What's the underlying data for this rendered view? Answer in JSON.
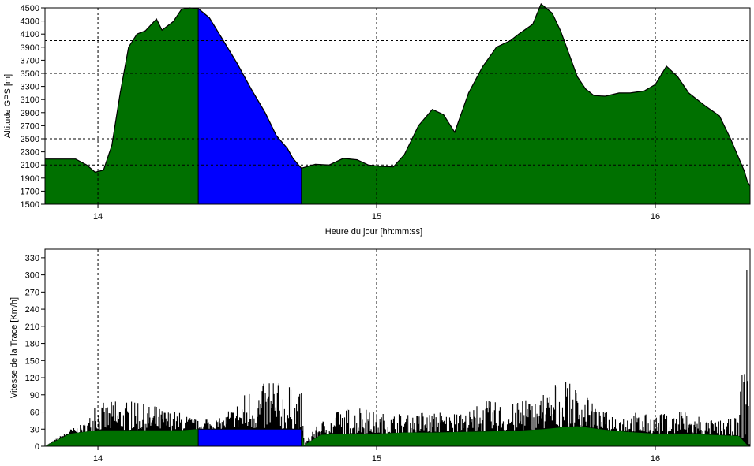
{
  "chart_data": [
    {
      "type": "area",
      "xlabel": "Heure du jour [hh:mm:ss]",
      "ylabel": "Altitude GPS [m]",
      "xlim": [
        13.81,
        16.34
      ],
      "ylim": [
        1500,
        4500
      ],
      "yticks": [
        1500,
        1700,
        1900,
        2100,
        2300,
        2500,
        2700,
        2900,
        3100,
        3300,
        3500,
        3700,
        3900,
        4100,
        4300,
        4500
      ],
      "xticks": [
        14,
        15,
        16
      ],
      "hgrid": [
        2100,
        2500,
        3000,
        3500,
        4000,
        4500
      ],
      "grid": true,
      "selection": [
        14.36,
        14.73
      ],
      "colors": {
        "fill": "#007000",
        "selection": "#0000ff",
        "line": "#000000"
      },
      "x": [
        13.81,
        13.92,
        13.96,
        13.99,
        14.02,
        14.05,
        14.08,
        14.11,
        14.14,
        14.17,
        14.21,
        14.23,
        14.27,
        14.3,
        14.33,
        14.36,
        14.4,
        14.45,
        14.5,
        14.55,
        14.6,
        14.64,
        14.68,
        14.7,
        14.73,
        14.78,
        14.83,
        14.88,
        14.93,
        14.97,
        15.01,
        15.06,
        15.1,
        15.15,
        15.2,
        15.24,
        15.28,
        15.33,
        15.38,
        15.43,
        15.48,
        15.51,
        15.56,
        15.59,
        15.63,
        15.66,
        15.69,
        15.72,
        15.75,
        15.78,
        15.82,
        15.87,
        15.91,
        15.96,
        16.0,
        16.04,
        16.08,
        16.12,
        16.18,
        16.23,
        16.27,
        16.3,
        16.32,
        16.33,
        16.34
      ],
      "values": [
        2190,
        2190,
        2100,
        1990,
        2020,
        2400,
        3200,
        3900,
        4100,
        4150,
        4330,
        4160,
        4290,
        4480,
        4500,
        4490,
        4350,
        4000,
        3650,
        3260,
        2900,
        2550,
        2350,
        2200,
        2050,
        2110,
        2100,
        2200,
        2180,
        2100,
        2080,
        2070,
        2260,
        2700,
        2950,
        2870,
        2600,
        3200,
        3600,
        3900,
        4000,
        4100,
        4250,
        4560,
        4420,
        4150,
        3800,
        3450,
        3260,
        3160,
        3150,
        3200,
        3200,
        3230,
        3330,
        3610,
        3450,
        3200,
        3000,
        2850,
        2500,
        2200,
        2000,
        1850,
        1780
      ]
    },
    {
      "type": "area",
      "ylabel": "Vitesse de la Trace [Km/h]",
      "xlim": [
        13.81,
        16.34
      ],
      "ylim": [
        0,
        345
      ],
      "yticks": [
        0,
        30,
        60,
        90,
        120,
        150,
        180,
        210,
        240,
        270,
        300,
        330
      ],
      "xticks": [
        14,
        15,
        16
      ],
      "grid": true,
      "selection": [
        14.36,
        14.73
      ],
      "colors": {
        "fill": "#007000",
        "selection": "#0000ff",
        "peaks": "#000000"
      },
      "x": [
        13.81,
        13.9,
        13.95,
        14.0,
        14.1,
        14.2,
        14.3,
        14.36,
        14.45,
        14.55,
        14.65,
        14.73,
        14.74,
        14.8,
        14.9,
        15.0,
        15.1,
        15.2,
        15.3,
        15.4,
        15.5,
        15.6,
        15.66,
        15.72,
        15.8,
        15.9,
        16.0,
        16.1,
        16.2,
        16.3,
        16.33,
        16.34
      ],
      "base": [
        0,
        22,
        25,
        28,
        28,
        28,
        28,
        30,
        30,
        30,
        30,
        30,
        2,
        20,
        22,
        22,
        24,
        24,
        25,
        26,
        27,
        30,
        33,
        35,
        30,
        25,
        22,
        22,
        20,
        18,
        2,
        0
      ],
      "envelope": [
        0,
        30,
        40,
        75,
        80,
        70,
        60,
        45,
        50,
        110,
        110,
        95,
        5,
        45,
        70,
        60,
        55,
        60,
        55,
        80,
        75,
        90,
        115,
        105,
        60,
        60,
        55,
        60,
        45,
        50,
        340,
        0
      ]
    }
  ]
}
